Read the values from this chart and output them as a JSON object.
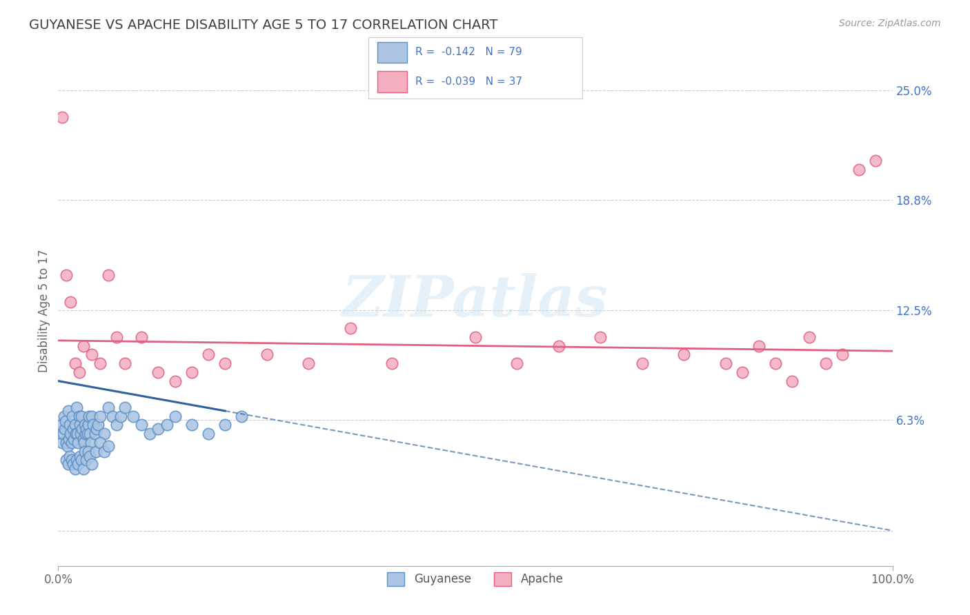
{
  "title": "GUYANESE VS APACHE DISABILITY AGE 5 TO 17 CORRELATION CHART",
  "source": "Source: ZipAtlas.com",
  "ylabel": "Disability Age 5 to 17",
  "xlim": [
    0.0,
    100.0
  ],
  "ylim": [
    -2.0,
    27.0
  ],
  "ytick_vals": [
    0.0,
    6.3,
    12.5,
    18.8,
    25.0
  ],
  "ytick_labels": [
    "",
    "6.3%",
    "12.5%",
    "18.8%",
    "25.0%"
  ],
  "xtick_vals": [
    0.0,
    100.0
  ],
  "xtick_labels": [
    "0.0%",
    "100.0%"
  ],
  "legend_labels": [
    "Guyanese",
    "Apache"
  ],
  "guyanese_color": "#aac4e2",
  "apache_color": "#f4aec0",
  "guyanese_edge": "#5b8fc7",
  "apache_edge": "#e06080",
  "guyanese_R": -0.142,
  "guyanese_N": 79,
  "apache_R": -0.039,
  "apache_N": 37,
  "background_color": "#ffffff",
  "grid_color": "#cccccc",
  "title_color": "#404040",
  "watermark": "ZIPatlas",
  "blue_line_color": "#3060a0",
  "pink_line_color": "#e06080",
  "guyanese_x": [
    0.3,
    0.4,
    0.5,
    0.6,
    0.7,
    0.8,
    0.9,
    1.0,
    1.1,
    1.2,
    1.3,
    1.4,
    1.5,
    1.6,
    1.7,
    1.8,
    1.9,
    2.0,
    2.1,
    2.2,
    2.3,
    2.4,
    2.5,
    2.6,
    2.7,
    2.8,
    2.9,
    3.0,
    3.1,
    3.2,
    3.3,
    3.4,
    3.5,
    3.6,
    3.7,
    3.8,
    3.9,
    4.0,
    4.2,
    4.4,
    4.6,
    4.8,
    5.0,
    5.5,
    6.0,
    6.5,
    7.0,
    7.5,
    8.0,
    9.0,
    10.0,
    11.0,
    12.0,
    13.0,
    14.0,
    16.0,
    18.0,
    20.0,
    22.0,
    1.0,
    1.2,
    1.4,
    1.6,
    1.8,
    2.0,
    2.2,
    2.4,
    2.6,
    2.8,
    3.0,
    3.2,
    3.4,
    3.6,
    3.8,
    4.0,
    4.5,
    5.0,
    5.5,
    6.0
  ],
  "guyanese_y": [
    5.5,
    6.0,
    5.0,
    5.5,
    6.5,
    5.8,
    6.2,
    5.0,
    4.8,
    6.8,
    5.2,
    6.0,
    5.5,
    5.0,
    6.5,
    5.8,
    5.2,
    6.0,
    5.5,
    7.0,
    5.5,
    5.0,
    6.5,
    6.0,
    5.5,
    6.5,
    5.8,
    5.2,
    5.0,
    6.0,
    5.5,
    5.8,
    5.5,
    6.0,
    6.5,
    5.5,
    5.0,
    6.5,
    6.0,
    5.5,
    5.8,
    6.0,
    6.5,
    5.5,
    7.0,
    6.5,
    6.0,
    6.5,
    7.0,
    6.5,
    6.0,
    5.5,
    5.8,
    6.0,
    6.5,
    6.0,
    5.5,
    6.0,
    6.5,
    4.0,
    3.8,
    4.2,
    4.0,
    3.8,
    3.5,
    4.0,
    3.8,
    4.2,
    4.0,
    3.5,
    4.5,
    4.0,
    4.5,
    4.2,
    3.8,
    4.5,
    5.0,
    4.5,
    4.8
  ],
  "apache_x": [
    0.5,
    1.0,
    1.5,
    2.0,
    2.5,
    3.0,
    4.0,
    5.0,
    6.0,
    7.0,
    8.0,
    10.0,
    12.0,
    14.0,
    16.0,
    18.0,
    20.0,
    25.0,
    30.0,
    35.0,
    40.0,
    50.0,
    55.0,
    60.0,
    65.0,
    70.0,
    75.0,
    80.0,
    82.0,
    84.0,
    86.0,
    88.0,
    90.0,
    92.0,
    94.0,
    96.0,
    98.0
  ],
  "apache_y": [
    23.5,
    14.5,
    13.0,
    9.5,
    9.0,
    10.5,
    10.0,
    9.5,
    14.5,
    11.0,
    9.5,
    11.0,
    9.0,
    8.5,
    9.0,
    10.0,
    9.5,
    10.0,
    9.5,
    11.5,
    9.5,
    11.0,
    9.5,
    10.5,
    11.0,
    9.5,
    10.0,
    9.5,
    9.0,
    10.5,
    9.5,
    8.5,
    11.0,
    9.5,
    10.0,
    20.5,
    21.0
  ],
  "blue_solid_xmax": 20.0,
  "apache_line_y0": 10.8,
  "apache_line_y1": 10.2
}
